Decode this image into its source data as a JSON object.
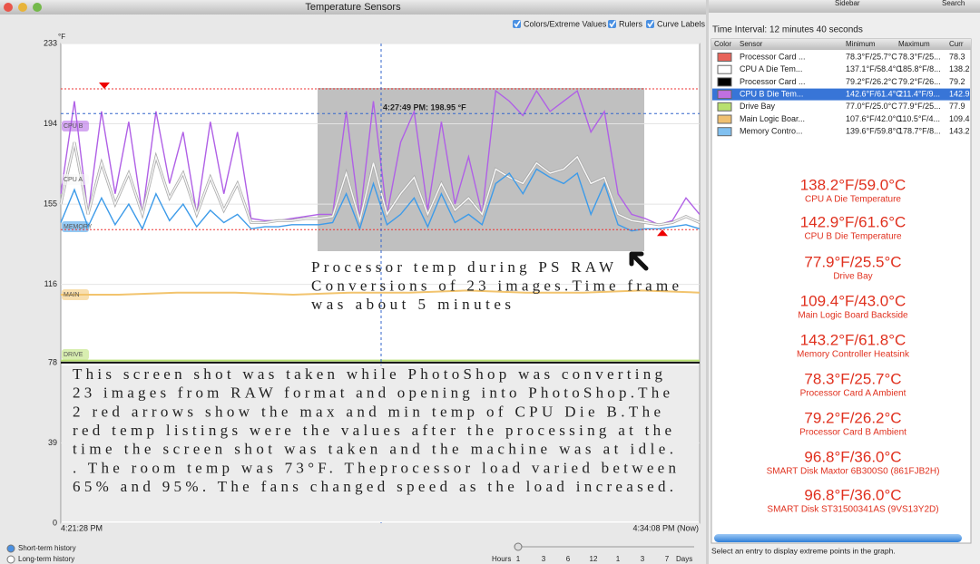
{
  "window_title": "Temperature Sensors",
  "toolbar": {
    "options": [
      "Colors/Extreme Values",
      "Rulers",
      "Curve Labels"
    ]
  },
  "chart_data": {
    "type": "line",
    "y_unit": "°F",
    "ylim": [
      0,
      233
    ],
    "yticks": [
      0,
      39,
      78,
      116,
      155,
      194,
      233
    ],
    "x_labels": [
      "4:21:28 PM",
      "4:34:08 PM (Now)"
    ],
    "cursor_label": "4:27:49 PM: 198.95 °F",
    "cursor_value": 198.95,
    "max_line": 211,
    "min_line": 142.6,
    "series": [
      {
        "name": "CPU B",
        "color": "#b060e6",
        "values": [
          160,
          205,
          150,
          200,
          160,
          195,
          150,
          200,
          165,
          190,
          150,
          195,
          160,
          190,
          148,
          147,
          147,
          148,
          149,
          150,
          150,
          200,
          148,
          205,
          150,
          185,
          200,
          152,
          195,
          155,
          178,
          150,
          210,
          205,
          198,
          210,
          200,
          205,
          210,
          190,
          200,
          160,
          150,
          148,
          145,
          147,
          158,
          150
        ]
      },
      {
        "name": "CPU A",
        "color": "#f8f8f8",
        "values": [
          155,
          185,
          150,
          175,
          155,
          170,
          150,
          178,
          158,
          170,
          150,
          168,
          152,
          165,
          146,
          146,
          147,
          147,
          148,
          148,
          149,
          170,
          147,
          175,
          150,
          160,
          168,
          150,
          165,
          152,
          158,
          150,
          172,
          168,
          165,
          175,
          170,
          172,
          178,
          165,
          168,
          150,
          147,
          146,
          145,
          146,
          149,
          146
        ]
      },
      {
        "name": "MEMORY",
        "color": "#3d9be9",
        "values": [
          146,
          162,
          144,
          158,
          145,
          155,
          143,
          160,
          147,
          155,
          144,
          152,
          146,
          150,
          143,
          144,
          144,
          145,
          145,
          145,
          146,
          160,
          143,
          165,
          145,
          150,
          158,
          144,
          160,
          146,
          150,
          145,
          165,
          170,
          160,
          172,
          168,
          165,
          170,
          150,
          165,
          145,
          142,
          143,
          143,
          144,
          145,
          143
        ]
      },
      {
        "name": "MAIN",
        "color": "#f2c46e",
        "values": [
          111,
          111,
          112,
          112,
          111,
          112,
          112,
          113,
          112,
          112,
          113,
          112
        ]
      },
      {
        "name": "DRIVE",
        "color": "#b8e070",
        "values": [
          79,
          79,
          79,
          79,
          79,
          79,
          79,
          79,
          79,
          79,
          79,
          79
        ]
      },
      {
        "color": "#111111",
        "values": [
          78,
          78,
          78,
          78,
          78,
          78,
          78,
          78,
          78,
          78,
          78,
          78
        ]
      }
    ]
  },
  "annotations": [
    {
      "lines": [
        "Processor temp during PS RAW",
        "Conversions of 23 images.Time frame",
        "was about 5 minutes"
      ]
    },
    {
      "lines": [
        "This screen shot was taken while PhotoShop was converting",
        "23 images from RAW format and opening into PhotoShop.The",
        "2 red arrows show the max and min temp of CPU Die B.The",
        "red temp listings were the values after the processing at the",
        "time the screen shot was taken and the machine was at idle.",
        ". The room temp was 73°F. Theprocessor load varied between",
        "65% and 95%.  The fans changed speed as the load increased."
      ]
    }
  ],
  "history": [
    "Short-term history",
    "Long-term history"
  ],
  "range_slider": {
    "start": "Hours",
    "ticks": [
      "1",
      "3",
      "6",
      "12",
      "1",
      "3",
      "7"
    ],
    "end": "Days"
  },
  "sidebar": {
    "tabs": [
      "Sidebar",
      "Search"
    ],
    "interval": "Time Interval: 12 minutes 40 seconds",
    "columns": [
      "Color",
      "Sensor",
      "Minimum",
      "Maximum",
      "Curr"
    ],
    "rows": [
      {
        "color": "#e8645a",
        "cells": [
          "Processor Card ...",
          "78.3°F/25.7°C",
          "78.3°F/25...",
          "78.3"
        ]
      },
      {
        "color": "#ffffff",
        "cells": [
          "CPU A Die Tem...",
          "137.1°F/58.4°C",
          "185.8°F/8...",
          "138.2"
        ]
      },
      {
        "color": "#000000",
        "cells": [
          "Processor Card ...",
          "79.2°F/26.2°C",
          "79.2°F/26...",
          "79.2"
        ]
      },
      {
        "color": "#c070e0",
        "cells": [
          "CPU B Die Tem...",
          "142.6°F/61.4°C",
          "211.4°F/9...",
          "142.9"
        ]
      },
      {
        "color": "#b8e070",
        "cells": [
          "Drive Bay",
          "77.0°F/25.0°C",
          "77.9°F/25...",
          "77.9"
        ]
      },
      {
        "color": "#f0c070",
        "cells": [
          "Main Logic Boar...",
          "107.6°F/42.0°C",
          "110.5°F/4...",
          "109.4"
        ]
      },
      {
        "color": "#80c0f0",
        "cells": [
          "Memory Contro...",
          "139.6°F/59.8°C",
          "178.7°F/8...",
          "143.2"
        ]
      }
    ],
    "readings": [
      {
        "value": "138.2°F/59.0°C",
        "name": "CPU A Die Temperature"
      },
      {
        "value": "142.9°F/61.6°C",
        "name": "CPU B Die Temperature"
      },
      {
        "value": "77.9°F/25.5°C",
        "name": "Drive Bay"
      },
      {
        "value": "109.4°F/43.0°C",
        "name": "Main Logic Board Backside"
      },
      {
        "value": "143.2°F/61.8°C",
        "name": "Memory Controller Heatsink"
      },
      {
        "value": "78.3°F/25.7°C",
        "name": "Processor Card A Ambient"
      },
      {
        "value": "79.2°F/26.2°C",
        "name": "Processor Card B Ambient"
      },
      {
        "value": "96.8°F/36.0°C",
        "name": "SMART Disk Maxtor 6B300S0 (861FJB2H)"
      },
      {
        "value": "96.8°F/36.0°C",
        "name": "SMART Disk ST31500341AS (9VS13Y2D)"
      }
    ],
    "footer": "Select an entry to display extreme points in the graph."
  }
}
